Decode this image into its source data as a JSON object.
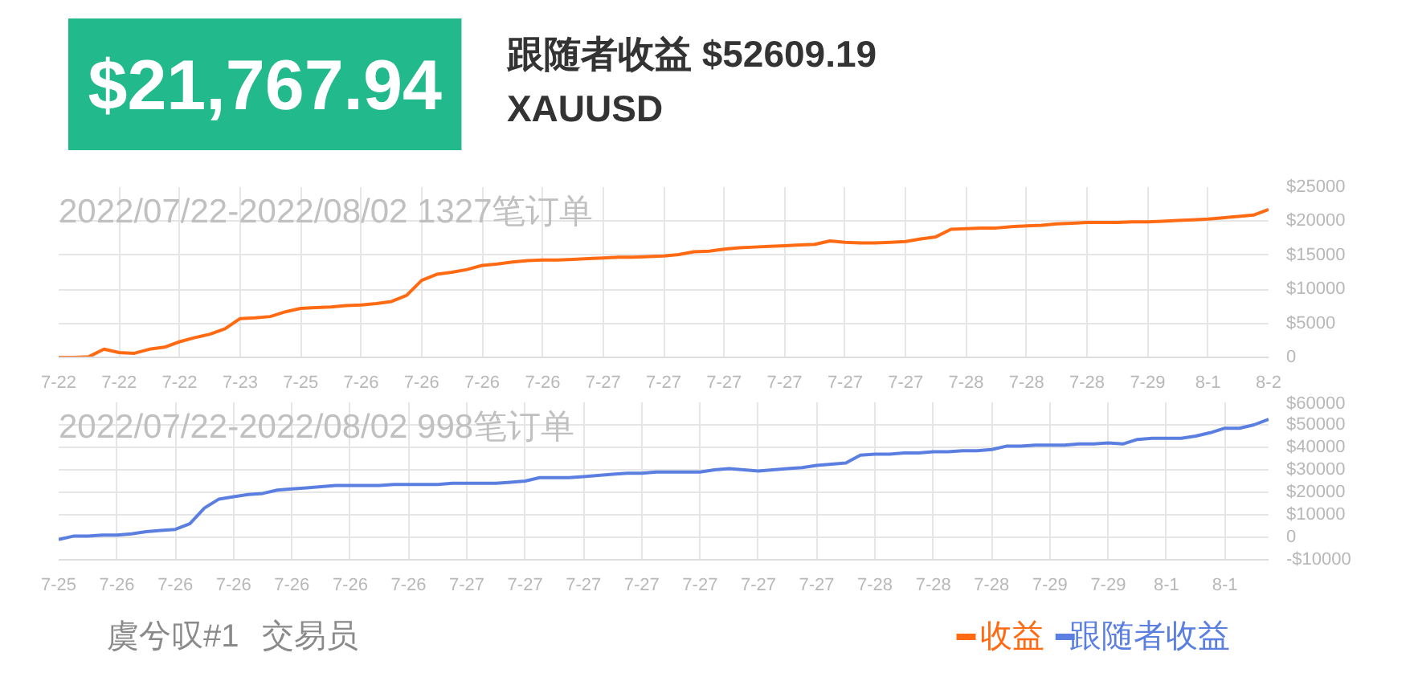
{
  "chart_data": [
    {
      "type": "other",
      "title": "$21,767.94",
      "annotations": [
        "跟随者收益 $52609.19",
        "XAUUSD",
        "虞兮叹#1",
        "交易员"
      ]
    },
    {
      "type": "line",
      "title": "2022/07/22-2022/08/02 1327笔订单",
      "categories": [
        "7-22",
        null,
        null,
        null,
        "7-22",
        null,
        null,
        null,
        "7-22",
        null,
        null,
        null,
        "7-23",
        null,
        null,
        null,
        "7-25",
        null,
        null,
        null,
        "7-26",
        null,
        null,
        null,
        "7-26",
        null,
        null,
        null,
        "7-26",
        null,
        null,
        null,
        "7-26",
        null,
        null,
        null,
        "7-27",
        null,
        null,
        null,
        "7-27",
        null,
        null,
        null,
        "7-27",
        null,
        null,
        null,
        "7-27",
        null,
        null,
        null,
        "7-27",
        null,
        null,
        null,
        "7-27",
        null,
        null,
        null,
        "7-28",
        null,
        null,
        null,
        "7-28",
        null,
        null,
        null,
        "7-28",
        null,
        null,
        null,
        "7-29",
        null,
        null,
        null,
        "8-1",
        null,
        null,
        null,
        "8-2"
      ],
      "ylim": [
        0,
        25000
      ],
      "yticks": [
        {
          "value": 0,
          "label": "0"
        },
        {
          "value": 5000,
          "label": "$5000"
        },
        {
          "value": 10000,
          "label": "$10000"
        },
        {
          "value": 15000,
          "label": "$15000"
        },
        {
          "value": 20000,
          "label": "$20000"
        },
        {
          "value": 25000,
          "label": "$25000"
        }
      ],
      "grid": true,
      "legend": "bottom right",
      "line_style": "solid",
      "series": [
        {
          "name": "收益",
          "color": "#ff6a13",
          "values": [
            0,
            0,
            100,
            1200,
            700,
            600,
            1200,
            1500,
            2300,
            2900,
            3400,
            4200,
            5700,
            5800,
            6000,
            6700,
            7200,
            7300,
            7400,
            7600,
            7700,
            7900,
            8200,
            9100,
            11300,
            12200,
            12500,
            12900,
            13500,
            13700,
            14000,
            14200,
            14300,
            14300,
            14400,
            14500,
            14600,
            14700,
            14700,
            14800,
            14900,
            15100,
            15500,
            15600,
            15900,
            16100,
            16200,
            16300,
            16400,
            16500,
            16600,
            17100,
            16900,
            16800,
            16800,
            16900,
            17000,
            17400,
            17700,
            18800,
            18900,
            19000,
            19000,
            19200,
            19300,
            19400,
            19600,
            19700,
            19800,
            19800,
            19800,
            19900,
            19900,
            20000,
            20100,
            20200,
            20300,
            20500,
            20700,
            20900,
            21700
          ]
        }
      ]
    },
    {
      "type": "line",
      "title": "2022/07/22-2022/08/02 998笔订单",
      "categories": [
        "7-25",
        null,
        null,
        null,
        "7-26",
        null,
        null,
        null,
        "7-26",
        null,
        null,
        null,
        "7-26",
        null,
        null,
        null,
        "7-26",
        null,
        null,
        null,
        "7-26",
        null,
        null,
        null,
        "7-26",
        null,
        null,
        null,
        "7-27",
        null,
        null,
        null,
        "7-27",
        null,
        null,
        null,
        "7-27",
        null,
        null,
        null,
        "7-27",
        null,
        null,
        null,
        "7-27",
        null,
        null,
        null,
        "7-27",
        null,
        null,
        null,
        "7-27",
        null,
        null,
        null,
        "7-28",
        null,
        null,
        null,
        "7-28",
        null,
        null,
        null,
        "7-28",
        null,
        null,
        null,
        "7-29",
        null,
        null,
        null,
        "7-29",
        null,
        null,
        null,
        "8-1",
        null,
        null,
        null,
        "8-1",
        null,
        null,
        null
      ],
      "ylim": [
        -10000,
        60000
      ],
      "yticks": [
        {
          "value": -10000,
          "label": "-$10000"
        },
        {
          "value": 0,
          "label": "0"
        },
        {
          "value": 10000,
          "label": "$10000"
        },
        {
          "value": 20000,
          "label": "$20000"
        },
        {
          "value": 30000,
          "label": "$30000"
        },
        {
          "value": 40000,
          "label": "$40000"
        },
        {
          "value": 50000,
          "label": "$50000"
        },
        {
          "value": 60000,
          "label": "$60000"
        }
      ],
      "grid": true,
      "legend": "bottom right",
      "line_style": "solid",
      "series": [
        {
          "name": "跟随者收益",
          "color": "#5b7fe0",
          "values": [
            -1000,
            500,
            500,
            1000,
            1000,
            1500,
            2500,
            3000,
            3500,
            6000,
            13000,
            17000,
            18000,
            19000,
            19500,
            21000,
            21500,
            22000,
            22500,
            23000,
            23000,
            23000,
            23000,
            23500,
            23500,
            23500,
            23500,
            24000,
            24000,
            24000,
            24000,
            24500,
            25000,
            26500,
            26500,
            26500,
            27000,
            27500,
            28000,
            28500,
            28500,
            29000,
            29000,
            29000,
            29000,
            30000,
            30500,
            30000,
            29500,
            30000,
            30500,
            31000,
            32000,
            32500,
            33000,
            36500,
            37000,
            37000,
            37500,
            37500,
            38000,
            38000,
            38500,
            38500,
            39000,
            40500,
            40500,
            41000,
            41000,
            41000,
            41500,
            41500,
            42000,
            41500,
            43500,
            44000,
            44000,
            44000,
            45000,
            46500,
            48500,
            48500,
            50000,
            52500
          ]
        }
      ]
    }
  ]
}
